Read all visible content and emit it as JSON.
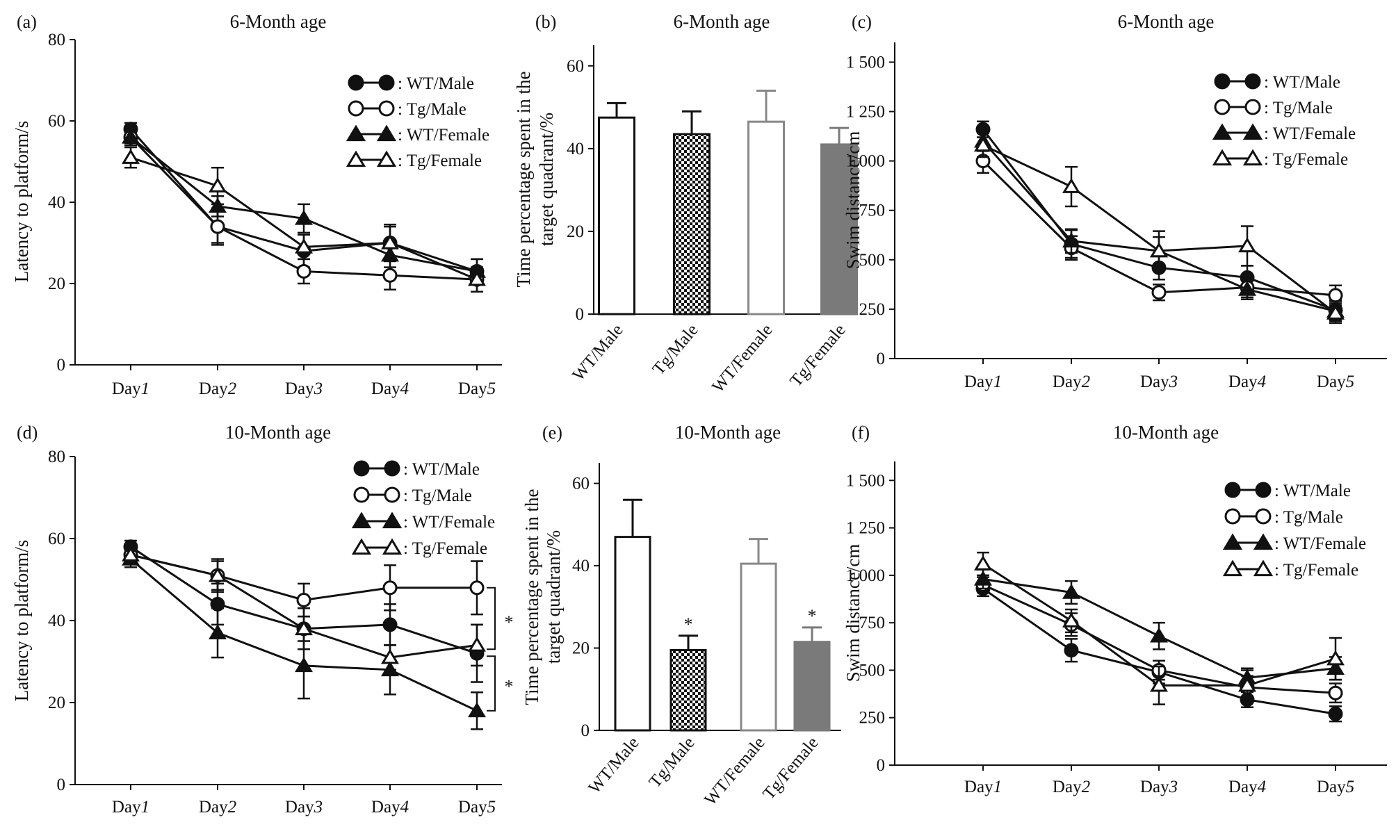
{
  "figure": {
    "day_prefix": "Day",
    "legend": [
      {
        "label": ": WT/Male",
        "marker": "circle",
        "filled": true
      },
      {
        "label": ": Tg/Male",
        "marker": "circle",
        "filled": false
      },
      {
        "label": ": WT/Female",
        "marker": "triangle",
        "filled": true
      },
      {
        "label": ": Tg/Female",
        "marker": "triangle",
        "filled": false
      }
    ],
    "colors": {
      "axis": "#111111",
      "wt_female_gray": "#888888",
      "tg_female_fill": "#7a7a7a"
    }
  },
  "chart_data": [
    {
      "id": "a",
      "panel_label": "(a)",
      "type": "line",
      "title": "6-Month age",
      "ylabel": "Latency to platform/s",
      "ylim": [
        0,
        80
      ],
      "yticks": [
        0,
        20,
        40,
        60,
        80
      ],
      "ytick_labels": [
        "0",
        "20",
        "40",
        "60",
        "80"
      ],
      "x": [
        "1",
        "2",
        "3",
        "4",
        "5"
      ],
      "series": [
        {
          "name": "WT/Male",
          "values": [
            58,
            34,
            28,
            30,
            23
          ],
          "errors": [
            1.5,
            4.5,
            4,
            4.5,
            3
          ]
        },
        {
          "name": "Tg/Male",
          "values": [
            56,
            34,
            23,
            22,
            21
          ],
          "errors": [
            1.5,
            4,
            3,
            3.5,
            3
          ]
        },
        {
          "name": "WT/Female",
          "values": [
            56,
            39,
            36,
            27,
            23
          ],
          "errors": [
            2,
            2.5,
            3.5,
            3,
            3
          ]
        },
        {
          "name": "Tg/Female",
          "values": [
            51,
            44,
            29,
            30,
            21
          ],
          "errors": [
            2.5,
            4.5,
            3,
            4,
            3
          ]
        }
      ],
      "legend_pos": "top-right"
    },
    {
      "id": "b",
      "panel_label": "(b)",
      "type": "bar",
      "title": "6-Month age",
      "ylabel_lines": [
        "Time percentage spent in the",
        "target quadrant/%"
      ],
      "ylim": [
        0,
        65
      ],
      "yticks": [
        0,
        20,
        40,
        60
      ],
      "ytick_labels": [
        "0",
        "20",
        "40",
        "60"
      ],
      "categories": [
        "WT/Male",
        "Tg/Male",
        "WT/Female",
        "Tg/Female"
      ],
      "values": [
        47.5,
        43.5,
        46.5,
        41
      ],
      "errors": [
        3.5,
        5.5,
        7.5,
        4
      ],
      "annotations": [
        "",
        "",
        "",
        ""
      ]
    },
    {
      "id": "c",
      "panel_label": "(c)",
      "type": "line",
      "title": "6-Month age",
      "ylabel": "Swim distance/cm",
      "ylim": [
        0,
        1600
      ],
      "yticks": [
        0,
        250,
        500,
        750,
        1000,
        1250,
        1500
      ],
      "ytick_labels": [
        "0",
        "250",
        "500",
        "750",
        "1 000",
        "1 250",
        "1 500"
      ],
      "x": [
        "1",
        "2",
        "3",
        "4",
        "5"
      ],
      "series": [
        {
          "name": "WT/Male",
          "values": [
            1160,
            580,
            460,
            410,
            245
          ],
          "errors": [
            40,
            70,
            60,
            60,
            50
          ]
        },
        {
          "name": "Tg/Male",
          "values": [
            1000,
            560,
            335,
            360,
            320
          ],
          "errors": [
            60,
            60,
            40,
            50,
            50
          ]
        },
        {
          "name": "WT/Female",
          "values": [
            1100,
            595,
            545,
            350,
            240
          ],
          "errors": [
            50,
            60,
            70,
            50,
            50
          ]
        },
        {
          "name": "Tg/Female",
          "values": [
            1080,
            870,
            545,
            570,
            230
          ],
          "errors": [
            60,
            100,
            100,
            100,
            50
          ]
        }
      ],
      "legend_pos": "top-right"
    },
    {
      "id": "d",
      "panel_label": "(d)",
      "type": "line",
      "title": "10-Month age",
      "ylabel": "Latency to platform/s",
      "ylim": [
        0,
        80
      ],
      "yticks": [
        0,
        20,
        40,
        60,
        80
      ],
      "ytick_labels": [
        "0",
        "20",
        "40",
        "60",
        "80"
      ],
      "x": [
        "1",
        "2",
        "3",
        "4",
        "5"
      ],
      "series": [
        {
          "name": "WT/Male",
          "values": [
            58,
            44,
            38,
            39,
            32
          ],
          "errors": [
            1.5,
            5,
            5,
            5,
            7
          ]
        },
        {
          "name": "Tg/Male",
          "values": [
            56,
            51,
            45,
            48,
            48
          ],
          "errors": [
            1.5,
            4,
            4,
            5.5,
            6.5
          ]
        },
        {
          "name": "WT/Female",
          "values": [
            55,
            37,
            29,
            28,
            18
          ],
          "errors": [
            2,
            6,
            8,
            6,
            4.5
          ]
        },
        {
          "name": "Tg/Female",
          "values": [
            56,
            51,
            38,
            31,
            34
          ],
          "errors": [
            2,
            3.5,
            3,
            3,
            5
          ]
        }
      ],
      "significance": [
        "*",
        "*"
      ],
      "legend_pos": "top-right"
    },
    {
      "id": "e",
      "panel_label": "(e)",
      "type": "bar",
      "title": "10-Month age",
      "ylabel_lines": [
        "Time percentage spent in the",
        "target quadrant/%"
      ],
      "ylim": [
        0,
        65
      ],
      "yticks": [
        0,
        20,
        40,
        60
      ],
      "ytick_labels": [
        "0",
        "20",
        "40",
        "60"
      ],
      "categories": [
        "WT/Male",
        "Tg/Male",
        "WT/Female",
        "Tg/Female"
      ],
      "values": [
        47,
        19.5,
        40.5,
        21.5
      ],
      "errors": [
        9,
        3.5,
        6,
        3.5
      ],
      "annotations": [
        "",
        "*",
        "",
        "*"
      ]
    },
    {
      "id": "f",
      "panel_label": "(f)",
      "type": "line",
      "title": "10-Month age",
      "ylabel": "Swim distance/cm",
      "ylim": [
        0,
        1600
      ],
      "yticks": [
        0,
        250,
        500,
        750,
        1000,
        1250,
        1500
      ],
      "ytick_labels": [
        "0",
        "250",
        "500",
        "750",
        "1 000",
        "1 250",
        "1 500"
      ],
      "x": [
        "1",
        "2",
        "3",
        "4",
        "5"
      ],
      "series": [
        {
          "name": "WT/Male",
          "values": [
            930,
            605,
            490,
            345,
            270
          ],
          "errors": [
            40,
            60,
            60,
            40,
            40
          ]
        },
        {
          "name": "Tg/Male",
          "values": [
            950,
            740,
            500,
            410,
            380
          ],
          "errors": [
            40,
            60,
            50,
            60,
            50
          ]
        },
        {
          "name": "WT/Female",
          "values": [
            980,
            910,
            680,
            460,
            510
          ],
          "errors": [
            50,
            60,
            70,
            50,
            60
          ]
        },
        {
          "name": "Tg/Female",
          "values": [
            1060,
            760,
            420,
            420,
            560
          ],
          "errors": [
            60,
            60,
            100,
            80,
            110
          ]
        }
      ],
      "legend_pos": "right"
    }
  ]
}
